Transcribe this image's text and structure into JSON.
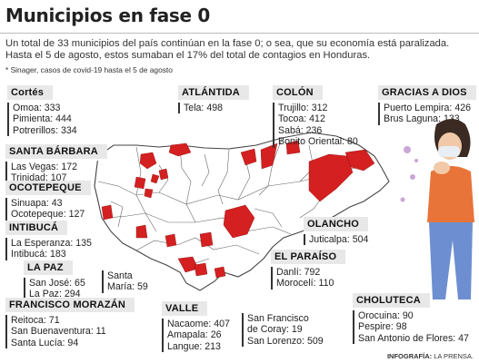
{
  "title": "Municipios en fase 0",
  "intro": "Un total de 33 municipios del país continúan en la fase 0; o sea, que su economía está paralizada. Hasta el 5 de agosto, estos sumaban el 17% del total de contagios en Honduras.",
  "note": "* Sinager, casos de covid-19 hasta el 5 de agosto",
  "colors": {
    "phase0": "#d42020",
    "land": "#ffffff",
    "border": "#555555",
    "label_bg": "#e8e8e8"
  },
  "regions": {
    "cortes": {
      "name": "Cortés",
      "items": [
        "Omoa: 333",
        "Pimienta: 444",
        "Potrerillos: 334"
      ]
    },
    "santa_barbara": {
      "name": "SANTA BÁRBARA",
      "items": [
        "Las Vegas: 172",
        "Trinidad: 107"
      ]
    },
    "ocotepeque": {
      "name": "OCOTEPEQUE",
      "items": [
        "Sinuapa: 43",
        "Ocotepeque: 127"
      ]
    },
    "intibuca": {
      "name": "INTIBUCÁ",
      "items": [
        "La Esperanza: 135",
        "Intibucá: 183"
      ]
    },
    "la_paz": {
      "name": "LA PAZ",
      "items": [
        "San José: 65",
        "La Paz: 294"
      ]
    },
    "santa_maria": {
      "items": [
        "Santa",
        "María: 59"
      ]
    },
    "francisco_morazan": {
      "name": "FRANCISCO MORAZÁN",
      "items": [
        "Reitoca: 71",
        "San Buenaventura: 11",
        "Santa Lucía: 94"
      ]
    },
    "atlantida": {
      "name": "ATLÁNTIDA",
      "items": [
        "Tela: 498"
      ]
    },
    "colon": {
      "name": "COLÓN",
      "items": [
        "Trujillo: 312",
        "Tocoa: 412",
        "Sabá: 236",
        "Bonito Oriental: 80"
      ]
    },
    "gracias_a_dios": {
      "name": "GRACIAS A DIOS",
      "items": [
        "Puerto Lempira: 426",
        "Brus Laguna: 133"
      ]
    },
    "olancho": {
      "name": "OLANCHO",
      "items": [
        "Juticalpa: 504"
      ]
    },
    "el_paraiso": {
      "name": "EL PARAÍSO",
      "items": [
        "Danlí: 792",
        "Morocelí: 110"
      ]
    },
    "valle": {
      "name": "VALLE",
      "items": [
        "Nacaome: 407",
        "Amapala: 26",
        "Langue: 213"
      ]
    },
    "valle2": {
      "items": [
        "San Francisco",
        "de Coray: 19",
        "San Lorenzo: 509"
      ]
    },
    "choluteca": {
      "name": "CHOLUTECA",
      "items": [
        "Orocuina: 90",
        "Pespire: 98",
        "San Antonio de Flores: 47"
      ]
    }
  },
  "credit": {
    "label": "INFOGRAFÍA:",
    "source": "LA PRENSA."
  }
}
